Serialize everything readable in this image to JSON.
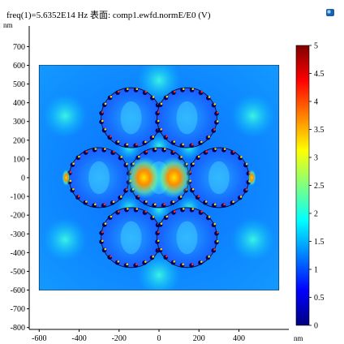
{
  "title": "freq(1)=5.6352E14 Hz 表面: comp1.ewfd.normE/E0 (V)",
  "icon": "app-cube-icon",
  "chart_data": {
    "type": "heatmap",
    "title": "freq(1)=5.6352E14 Hz 表面: comp1.ewfd.normE/E0 (V)",
    "x_unit": "nm",
    "y_unit": "nm",
    "xlim": [
      -650,
      650
    ],
    "ylim": [
      -810,
      810
    ],
    "x_ticks": [
      -600,
      -400,
      -200,
      0,
      200,
      400
    ],
    "y_ticks": [
      700,
      600,
      500,
      400,
      300,
      200,
      100,
      0,
      -100,
      -200,
      -300,
      -400,
      -500,
      -600,
      -700,
      -800
    ],
    "domain_x": [
      -600,
      600
    ],
    "domain_y": [
      -600,
      600
    ],
    "colorbar": {
      "min": 0,
      "max": 5,
      "ticks": [
        5,
        4.5,
        4,
        3.5,
        3,
        2.5,
        2,
        1.5,
        1,
        0.5,
        0
      ],
      "colors": [
        "#00007f",
        "#0000ff",
        "#0080ff",
        "#00ffff",
        "#80ff80",
        "#ffff00",
        "#ff8000",
        "#ff0000",
        "#7f0000"
      ]
    },
    "particles": [
      {
        "cx": -140,
        "cy": 320,
        "r": 150
      },
      {
        "cx": 140,
        "cy": 320,
        "r": 150
      },
      {
        "cx": -300,
        "cy": 0,
        "r": 150
      },
      {
        "cx": 0,
        "cy": 0,
        "r": 150
      },
      {
        "cx": 300,
        "cy": 0,
        "r": 150
      },
      {
        "cx": -140,
        "cy": -320,
        "r": 150
      },
      {
        "cx": 140,
        "cy": -320,
        "r": 150
      }
    ]
  }
}
